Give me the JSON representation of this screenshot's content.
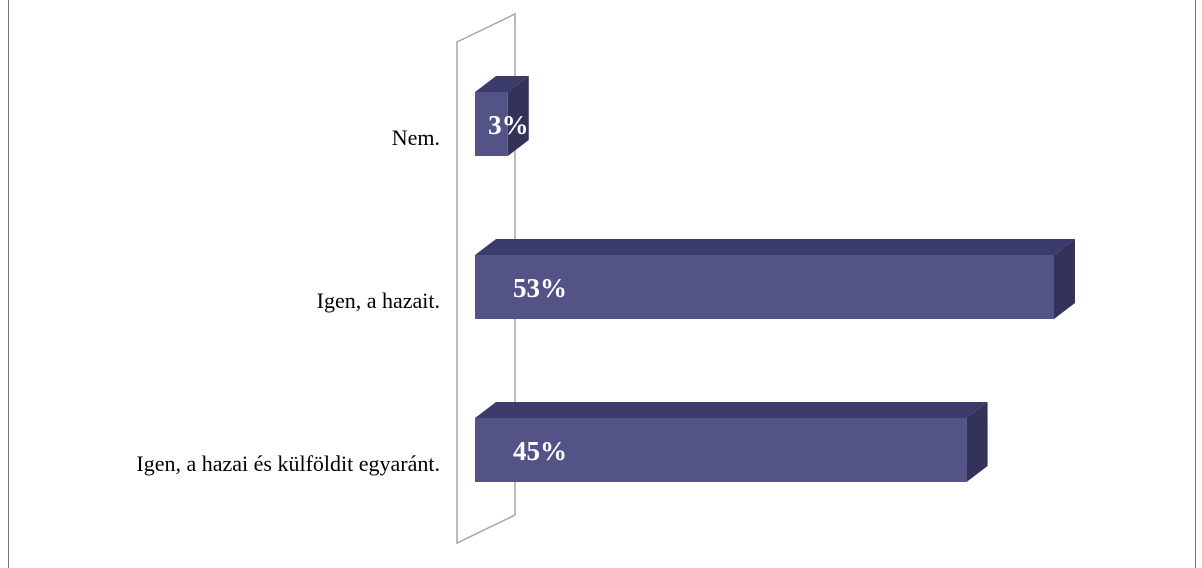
{
  "chart_data": {
    "type": "bar3d",
    "categories": [
      "Nem.",
      "Igen, a hazait.",
      "Igen, a hazai és külföldit egyaránt."
    ],
    "values": [
      3,
      53,
      45
    ],
    "value_labels": [
      "3%",
      "53%",
      "45%"
    ],
    "color": "#535387"
  }
}
